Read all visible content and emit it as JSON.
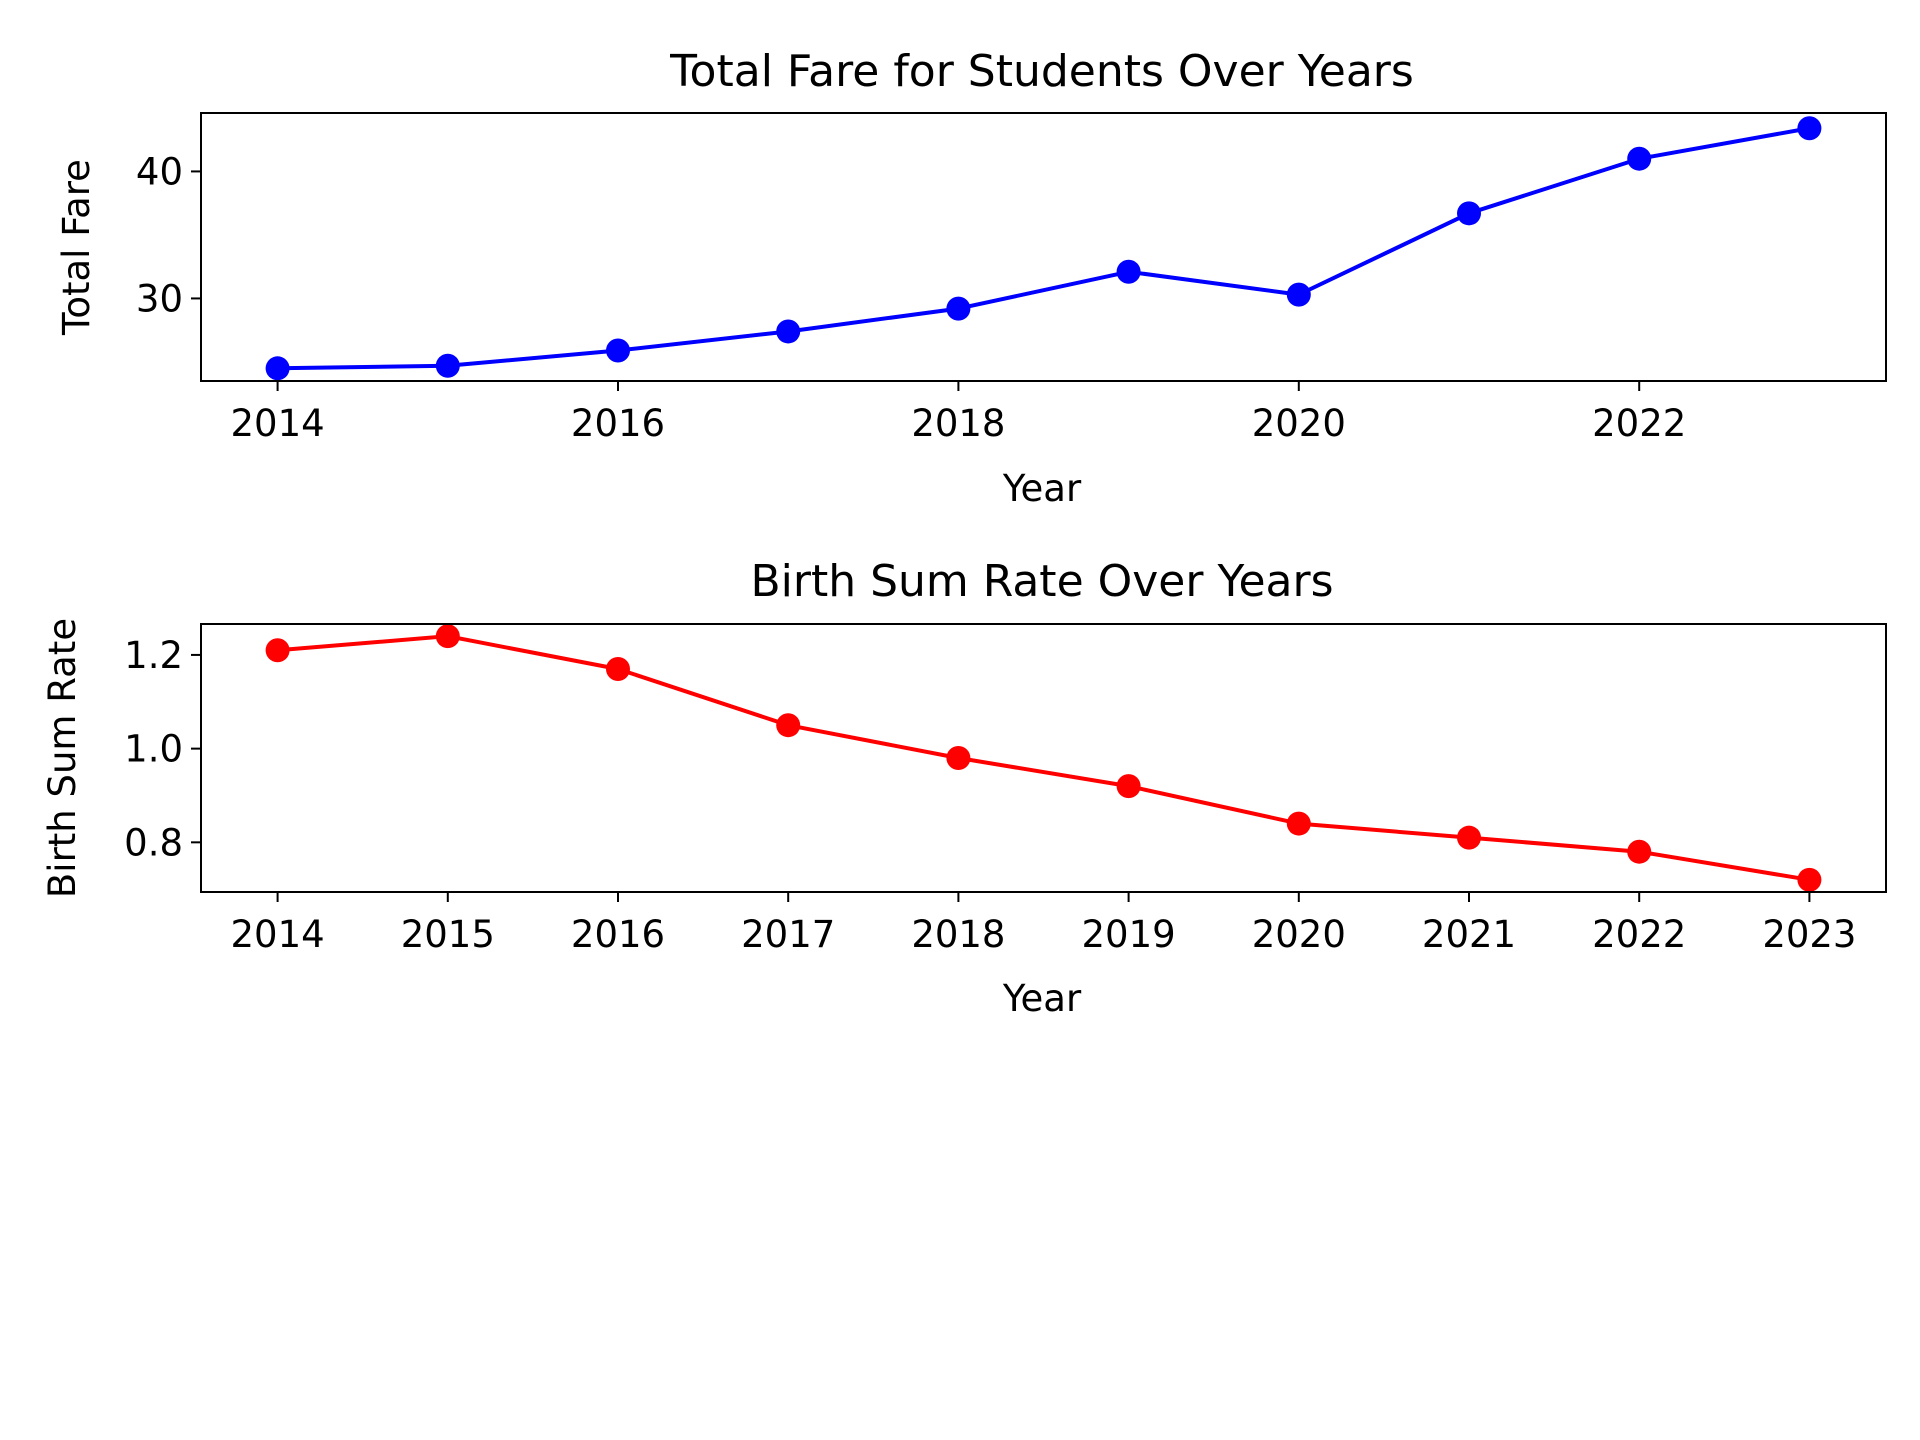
{
  "chart_data": [
    {
      "type": "line",
      "title": "Total Fare for Students Over Years",
      "xlabel": "Year",
      "ylabel": "Total Fare",
      "x": [
        2014,
        2015,
        2016,
        2017,
        2018,
        2019,
        2020,
        2021,
        2022,
        2023
      ],
      "series": [
        {
          "values": [
            24.5,
            24.7,
            25.9,
            27.4,
            29.2,
            32.1,
            30.3,
            36.7,
            41.0,
            43.4
          ],
          "color": "#0000ff",
          "marker": "circle"
        }
      ],
      "xlim": [
        2013.55,
        2023.45
      ],
      "ylim": [
        23.5,
        44.6
      ],
      "xticks": [
        2014,
        2016,
        2018,
        2020,
        2022
      ],
      "xtick_labels": [
        "2014",
        "2016",
        "2018",
        "2020",
        "2022"
      ],
      "yticks": [
        30,
        40
      ],
      "ytick_labels": [
        "30",
        "40"
      ],
      "grid": false,
      "legend": "none"
    },
    {
      "type": "line",
      "title": "Birth Sum Rate Over Years",
      "xlabel": "Year",
      "ylabel": "Birth Sum Rate",
      "x": [
        2014,
        2015,
        2016,
        2017,
        2018,
        2019,
        2020,
        2021,
        2022,
        2023
      ],
      "series": [
        {
          "values": [
            1.21,
            1.24,
            1.17,
            1.05,
            0.98,
            0.92,
            0.84,
            0.81,
            0.78,
            0.72
          ],
          "color": "#ff0000",
          "marker": "circle"
        }
      ],
      "xlim": [
        2013.55,
        2023.45
      ],
      "ylim": [
        0.694,
        1.266
      ],
      "xticks": [
        2014,
        2015,
        2016,
        2017,
        2018,
        2019,
        2020,
        2021,
        2022,
        2023
      ],
      "xtick_labels": [
        "2014",
        "2015",
        "2016",
        "2017",
        "2018",
        "2019",
        "2020",
        "2021",
        "2022",
        "2023"
      ],
      "yticks": [
        0.8,
        1.0,
        1.2
      ],
      "ytick_labels": [
        "0.8",
        "1.0",
        "1.2"
      ],
      "grid": false,
      "legend": "none"
    }
  ]
}
